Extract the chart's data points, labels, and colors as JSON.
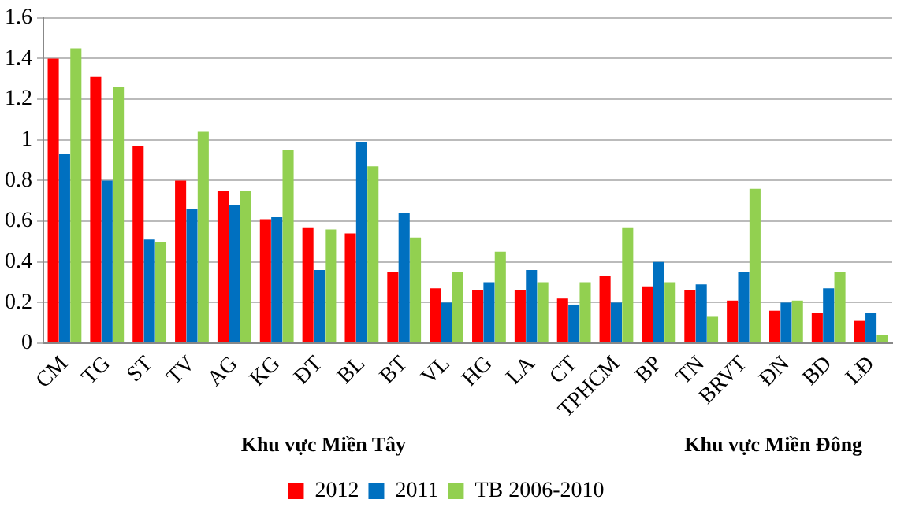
{
  "chart_data": {
    "type": "bar",
    "categories": [
      "CM",
      "TG",
      "ST",
      "TV",
      "AG",
      "KG",
      "ĐT",
      "BL",
      "BT",
      "VL",
      "HG",
      "LA",
      "CT",
      "TPHCM",
      "BP",
      "TN",
      "BRVT",
      "ĐN",
      "BD",
      "LĐ"
    ],
    "series": [
      {
        "name": "2012",
        "color": "#ff0000",
        "values": [
          1.4,
          1.31,
          0.97,
          0.8,
          0.75,
          0.61,
          0.57,
          0.54,
          0.35,
          0.27,
          0.26,
          0.26,
          0.22,
          0.33,
          0.28,
          0.26,
          0.21,
          0.16,
          0.15,
          0.11
        ]
      },
      {
        "name": "2011",
        "color": "#0070c0",
        "values": [
          0.93,
          0.8,
          0.51,
          0.66,
          0.68,
          0.62,
          0.36,
          0.99,
          0.64,
          0.2,
          0.3,
          0.36,
          0.19,
          0.2,
          0.4,
          0.29,
          0.35,
          0.2,
          0.27,
          0.15
        ]
      },
      {
        "name": "TB 2006-2010",
        "color": "#92d050",
        "values": [
          1.45,
          1.26,
          0.5,
          1.04,
          0.75,
          0.95,
          0.56,
          0.87,
          0.52,
          0.35,
          0.45,
          0.3,
          0.3,
          0.57,
          0.3,
          0.13,
          0.76,
          0.21,
          0.35,
          0.04
        ]
      }
    ],
    "ylim": [
      0,
      1.6
    ],
    "yticks": [
      0,
      0.2,
      0.4,
      0.6,
      0.8,
      1,
      1.2,
      1.4,
      1.6
    ],
    "grid": "y",
    "legend": "bottom",
    "annotations": [
      "Khu vực Miền Tây",
      "Khu vực Miền Đông"
    ]
  }
}
